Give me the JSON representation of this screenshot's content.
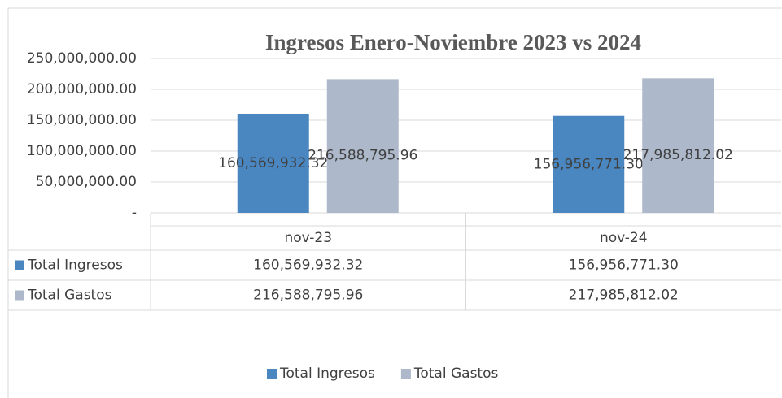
{
  "chart_data": {
    "type": "bar",
    "title": "Ingresos Enero-Noviembre 2023 vs 2024",
    "categories": [
      "nov-23",
      "nov-24"
    ],
    "series": [
      {
        "name": "Total Ingresos",
        "color": "#4a86c0",
        "values": [
          160569932.32,
          156956771.3
        ],
        "value_labels": [
          "160,569,932.32",
          "156,956,771.30"
        ]
      },
      {
        "name": "Total Gastos",
        "color": "#adb9ca",
        "values": [
          216588795.96,
          217985812.02
        ],
        "value_labels": [
          "216,588,795.96",
          "217,985,812.02"
        ]
      }
    ],
    "ylim": [
      0,
      250000000
    ],
    "yticks": [
      {
        "value": 0,
        "label": "-"
      },
      {
        "value": 50000000,
        "label": "50,000,000.00"
      },
      {
        "value": 100000000,
        "label": "100,000,000.00"
      },
      {
        "value": 150000000,
        "label": "150,000,000.00"
      },
      {
        "value": 200000000,
        "label": "200,000,000.00"
      },
      {
        "value": 250000000,
        "label": "250,000,000.00"
      }
    ],
    "grid": true,
    "data_table": true,
    "legend": "bottom"
  }
}
